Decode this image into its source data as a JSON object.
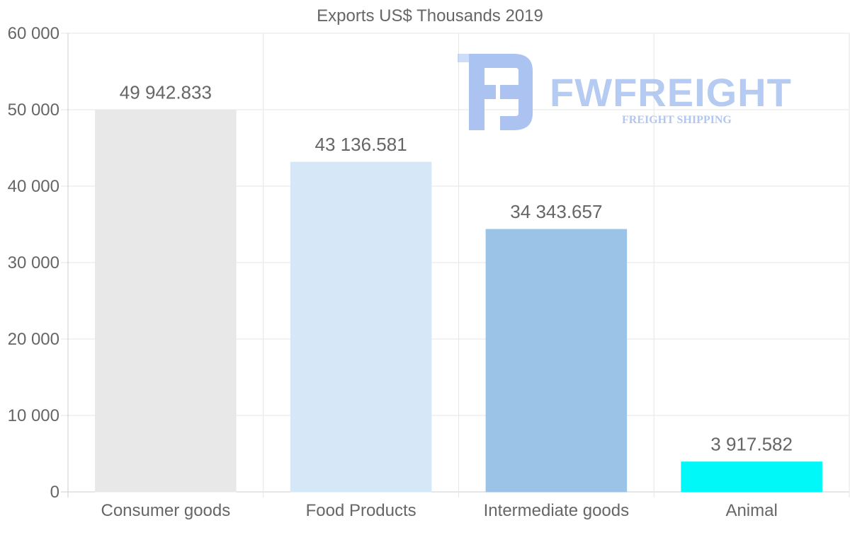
{
  "chart_data": {
    "type": "bar",
    "title": "Exports US$ Thousands 2019",
    "categories": [
      "Consumer goods",
      "Food Products",
      "Intermediate goods",
      "Animal"
    ],
    "values": [
      49942.833,
      43136.581,
      34343.657,
      3917.582
    ],
    "value_labels": [
      "49 942.833",
      "43 136.581",
      "34 343.657",
      "3 917.582"
    ],
    "bar_colors": [
      "#e8e8e8",
      "#d6e7f8",
      "#9bc3e8",
      "#00f8f8"
    ],
    "ylim": [
      0,
      60000
    ],
    "yticks": [
      0,
      10000,
      20000,
      30000,
      40000,
      50000,
      60000
    ],
    "ytick_labels": [
      "0",
      "10 000",
      "20 000",
      "30 000",
      "40 000",
      "50 000",
      "60 000"
    ],
    "xlabel": "",
    "ylabel": "",
    "grid": true,
    "legend": "none"
  },
  "watermark": {
    "name": "FWFREIGHT",
    "tagline": "FREIGHT SHIPPING",
    "color": "#9db9ee",
    "icon": "fw-logo-icon"
  }
}
